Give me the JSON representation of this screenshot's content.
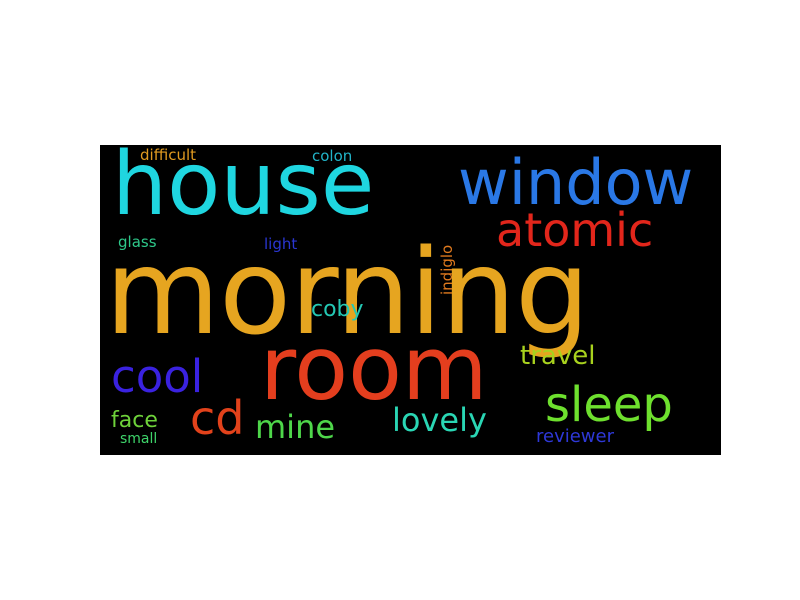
{
  "word_cloud": {
    "words": [
      {
        "text": "morning",
        "color": "#e6a520"
      },
      {
        "text": "house",
        "color": "#1fd6e0"
      },
      {
        "text": "window",
        "color": "#2a78e6"
      },
      {
        "text": "room",
        "color": "#e43e1e"
      },
      {
        "text": "atomic",
        "color": "#e2261b"
      },
      {
        "text": "sleep",
        "color": "#6ee02e"
      },
      {
        "text": "cool",
        "color": "#3a22e0"
      },
      {
        "text": "cd",
        "color": "#e2421b"
      },
      {
        "text": "mine",
        "color": "#4ed64a"
      },
      {
        "text": "lovely",
        "color": "#2ad6b4"
      },
      {
        "text": "travel",
        "color": "#a8d21e"
      },
      {
        "text": "coby",
        "color": "#24c8b4"
      },
      {
        "text": "face",
        "color": "#6ed23a"
      },
      {
        "text": "reviewer",
        "color": "#2e38d8"
      },
      {
        "text": "difficult",
        "color": "#e09a20"
      },
      {
        "text": "colon",
        "color": "#22b4c8"
      },
      {
        "text": "glass",
        "color": "#2ec88a"
      },
      {
        "text": "light",
        "color": "#2a36d2"
      },
      {
        "text": "small",
        "color": "#3ed46a"
      },
      {
        "text": "indiglo",
        "color": "#e07a1e"
      }
    ]
  }
}
